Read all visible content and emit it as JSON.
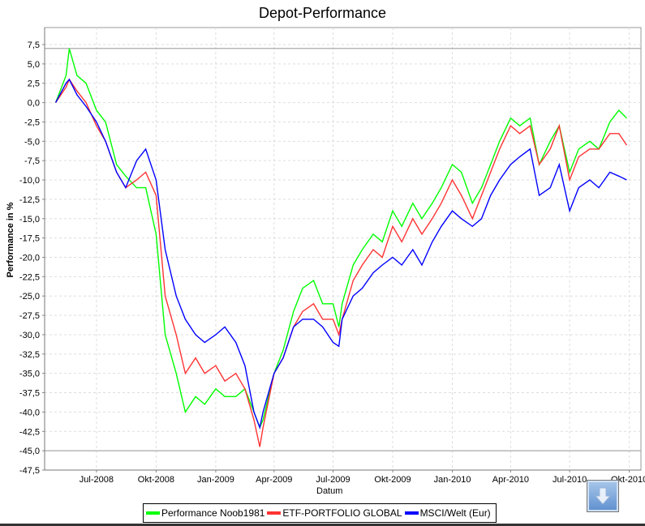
{
  "chart_data": {
    "type": "line",
    "title": "Depot-Performance",
    "xlabel": "Datum",
    "ylabel": "Performance in %",
    "x_ticks": [
      "Jul-2008",
      "Okt-2008",
      "Jan-2009",
      "Apr-2009",
      "Jul-2009",
      "Okt-2009",
      "Jan-2010",
      "Apr-2010",
      "Jul-2010",
      "Okt-2010"
    ],
    "x_tick_dates": [
      "2008-07-01",
      "2008-10-01",
      "2009-01-01",
      "2009-04-01",
      "2009-07-01",
      "2009-10-01",
      "2010-01-01",
      "2010-04-01",
      "2010-07-01",
      "2010-10-01"
    ],
    "xlim": [
      "2008-04-12",
      "2010-10-19"
    ],
    "y_ticks": [
      "7,5",
      "5,0",
      "2,5",
      "0,0",
      "-2,5",
      "-5,0",
      "-7,5",
      "-10,0",
      "-12,5",
      "-15,0",
      "-17,5",
      "-20,0",
      "-22,5",
      "-25,0",
      "-27,5",
      "-30,0",
      "-32,5",
      "-35,0",
      "-37,5",
      "-40,0",
      "-42,5",
      "-45,0",
      "-47,5"
    ],
    "ylim": [
      -47.5,
      9.7
    ],
    "grid": true,
    "reference_lines": [
      7.0,
      -45.0
    ],
    "legend_position": "bottom",
    "x": [
      "2008-04-29",
      "2008-05-15",
      "2008-05-20",
      "2008-06-01",
      "2008-06-15",
      "2008-07-01",
      "2008-07-15",
      "2008-08-01",
      "2008-08-15",
      "2008-09-01",
      "2008-09-15",
      "2008-10-01",
      "2008-10-15",
      "2008-11-01",
      "2008-11-15",
      "2008-12-01",
      "2008-12-15",
      "2009-01-01",
      "2009-01-15",
      "2009-02-01",
      "2009-02-15",
      "2009-03-01",
      "2009-03-10",
      "2009-03-15",
      "2009-04-01",
      "2009-04-15",
      "2009-05-01",
      "2009-05-15",
      "2009-06-01",
      "2009-06-15",
      "2009-07-01",
      "2009-07-10",
      "2009-07-15",
      "2009-08-01",
      "2009-08-15",
      "2009-09-01",
      "2009-09-15",
      "2009-10-01",
      "2009-10-15",
      "2009-11-01",
      "2009-11-15",
      "2009-12-01",
      "2009-12-15",
      "2010-01-01",
      "2010-01-15",
      "2010-02-01",
      "2010-02-15",
      "2010-03-01",
      "2010-03-15",
      "2010-04-01",
      "2010-04-15",
      "2010-05-01",
      "2010-05-15",
      "2010-06-01",
      "2010-06-15",
      "2010-07-01",
      "2010-07-15",
      "2010-08-01",
      "2010-08-15",
      "2010-09-01",
      "2010-09-15",
      "2010-09-27"
    ],
    "series": [
      {
        "name": "Performance Noob1981",
        "color": "#00ff00",
        "values": [
          0,
          3.5,
          7.0,
          3.5,
          2.5,
          -1,
          -2.5,
          -8,
          -9.5,
          -11,
          -11,
          -17,
          -30,
          -35,
          -40,
          -38,
          -39,
          -37,
          -38,
          -38,
          -37,
          -40,
          -42,
          -41,
          -35,
          -32,
          -27,
          -24,
          -23,
          -26,
          -26,
          -29,
          -26,
          -21,
          -19,
          -17,
          -18,
          -14,
          -16,
          -13,
          -15,
          -13,
          -11,
          -8,
          -9,
          -13,
          -11,
          -8,
          -5,
          -2,
          -3,
          -2,
          -8,
          -5,
          -3,
          -9,
          -6,
          -5,
          -6,
          -2.5,
          -1,
          -2
        ]
      },
      {
        "name": "ETF-PORTFOLIO GLOBAL",
        "color": "#ff3333",
        "values": [
          0,
          2,
          3.0,
          1.5,
          0,
          -3,
          -5,
          -9,
          -11,
          -10,
          -9,
          -12,
          -25,
          -30,
          -35,
          -33,
          -35,
          -34,
          -36,
          -35,
          -37,
          -41,
          -44.5,
          -42,
          -35,
          -33,
          -29,
          -27,
          -26,
          -28,
          -28,
          -30,
          -28,
          -23,
          -21,
          -19,
          -20,
          -16,
          -18,
          -15,
          -17,
          -15,
          -13,
          -10,
          -12,
          -15,
          -12,
          -9,
          -6,
          -3,
          -4,
          -3,
          -8,
          -6,
          -3,
          -10,
          -7,
          -6,
          -6,
          -4,
          -4,
          -5.5
        ]
      },
      {
        "name": "MSCI/Welt (Eur)",
        "color": "#0000ff",
        "values": [
          0,
          2.5,
          3.0,
          1.0,
          -0.5,
          -2.5,
          -5,
          -9,
          -11,
          -7.5,
          -6,
          -10,
          -19,
          -25,
          -28,
          -30,
          -31,
          -30,
          -29,
          -31,
          -34,
          -40,
          -42,
          -40,
          -35,
          -33,
          -29,
          -28,
          -28,
          -29,
          -31,
          -31.5,
          -28,
          -25,
          -24,
          -22,
          -21,
          -20,
          -21,
          -19,
          -21,
          -18,
          -16,
          -14,
          -15,
          -16,
          -15,
          -12,
          -10,
          -8,
          -7,
          -6,
          -12,
          -11,
          -8,
          -14,
          -11,
          -10,
          -11,
          -9,
          -9.5,
          -10
        ]
      }
    ]
  },
  "controls": {
    "down_button_icon": "arrow-down-icon"
  }
}
